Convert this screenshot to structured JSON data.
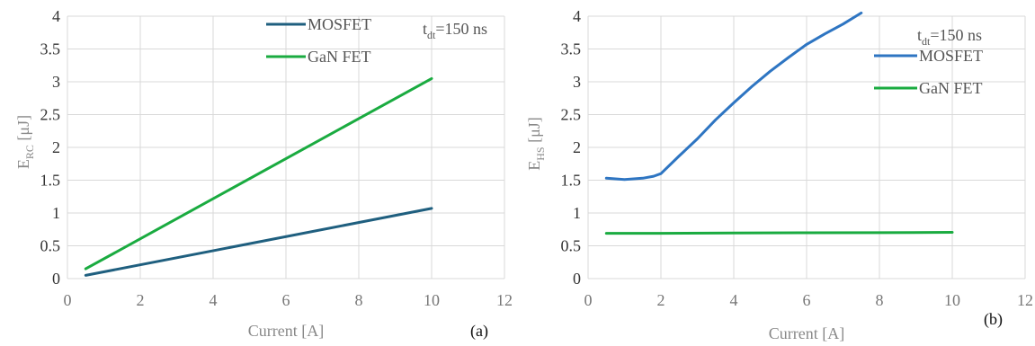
{
  "chart_data": [
    {
      "type": "line",
      "panel_label": "(a)",
      "xlabel": "Current [A]",
      "ylabel": {
        "base": "E",
        "sub": "RC",
        "unit": " [μJ]"
      },
      "annotation": {
        "base": "t",
        "sub": "dt",
        "rest": "=150 ns"
      },
      "xlim": [
        0,
        12
      ],
      "ylim": [
        0,
        4
      ],
      "x_ticks": [
        "0",
        "2",
        "4",
        "6",
        "8",
        "10",
        "12"
      ],
      "y_ticks": [
        "0",
        "0.5",
        "1",
        "1.5",
        "2",
        "2.5",
        "3",
        "3.5",
        "4"
      ],
      "grid": true,
      "legend_position": "top-right",
      "series": [
        {
          "name": "MOSFET",
          "color": "#1f5f7f",
          "x": [
            0.5,
            10
          ],
          "y": [
            0.05,
            1.07
          ]
        },
        {
          "name": "GaN FET",
          "color": "#1aab40",
          "x": [
            0.5,
            10
          ],
          "y": [
            0.15,
            3.05
          ]
        }
      ]
    },
    {
      "type": "line",
      "panel_label": "(b)",
      "xlabel": "Current [A]",
      "ylabel": {
        "base": "E",
        "sub": "HS",
        "unit": "  [μJ]"
      },
      "annotation": {
        "base": "t",
        "sub": "dt",
        "rest": "=150 ns"
      },
      "xlim": [
        0,
        12
      ],
      "ylim": [
        0,
        4
      ],
      "x_ticks": [
        "0",
        "2",
        "4",
        "6",
        "8",
        "10",
        "12"
      ],
      "y_ticks": [
        "0",
        "0.5",
        "1",
        "1.5",
        "2",
        "2.5",
        "3",
        "3.5",
        "4"
      ],
      "grid": true,
      "legend_position": "top-right",
      "series": [
        {
          "name": "MOSFET",
          "color": "#2e75c2",
          "x": [
            0.5,
            1.0,
            1.5,
            1.8,
            2.0,
            2.5,
            3.0,
            3.5,
            4.0,
            4.5,
            5.0,
            5.5,
            6.0,
            6.5,
            7.0,
            7.5
          ],
          "y": [
            1.53,
            1.51,
            1.53,
            1.56,
            1.6,
            1.87,
            2.13,
            2.42,
            2.68,
            2.93,
            3.16,
            3.37,
            3.57,
            3.73,
            3.88,
            4.05
          ]
        },
        {
          "name": "GaN FET",
          "color": "#1aab40",
          "x": [
            0.5,
            2,
            4,
            6,
            8,
            10
          ],
          "y": [
            0.69,
            0.69,
            0.695,
            0.698,
            0.7,
            0.705
          ]
        }
      ]
    }
  ]
}
